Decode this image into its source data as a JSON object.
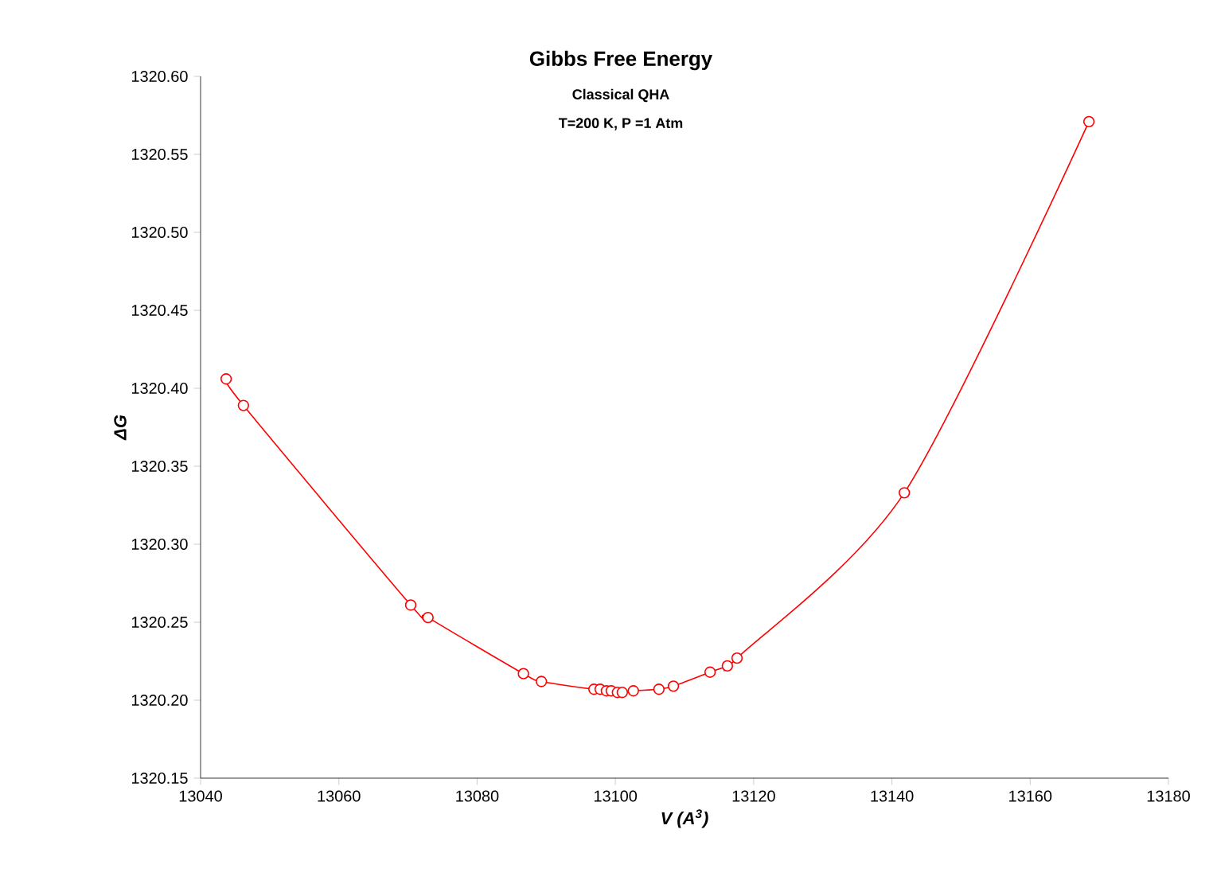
{
  "chart_data": {
    "type": "line",
    "title": "Gibbs Free Energy",
    "subtitle": "Classical QHA",
    "annotations": [
      "T=200 K, P =1 Atm"
    ],
    "xlabel": "V (A$^{3}$)",
    "ylabel": "ΔG",
    "xlim": [
      13040,
      13180
    ],
    "xticks": [
      13040,
      13060,
      13080,
      13100,
      13120,
      13140,
      13160,
      13180
    ],
    "ylim": [
      1320.15,
      1320.6
    ],
    "yticks": [
      {
        "value": 1320.15,
        "label": "1320.15"
      },
      {
        "value": 1320.2,
        "label": "1320.20"
      },
      {
        "value": 1320.25,
        "label": "1320.25"
      },
      {
        "value": 1320.3,
        "label": "1320.30"
      },
      {
        "value": 1320.35,
        "label": "1320.35"
      },
      {
        "value": 1320.4,
        "label": "1320.40"
      },
      {
        "value": 1320.45,
        "label": "1320.45"
      },
      {
        "value": 1320.5,
        "label": "1320.50"
      },
      {
        "value": 1320.55,
        "label": "1320.55"
      },
      {
        "value": 1320.6,
        "label": "1320.60"
      }
    ],
    "marker": "circle",
    "line_style": "solid",
    "series": [
      {
        "color": "#ff0000",
        "x": [
          13043.7,
          13046.2,
          13070.4,
          13072.9,
          13086.7,
          13089.3,
          13096.9,
          13097.8,
          13098.7,
          13099.4,
          13100.3,
          13101.0,
          13102.6,
          13106.3,
          13108.4,
          13113.7,
          13116.2,
          13117.6,
          13141.8,
          13168.5
        ],
        "values": [
          1320.406,
          1320.389,
          1320.261,
          1320.253,
          1320.217,
          1320.212,
          1320.207,
          1320.207,
          1320.206,
          1320.206,
          1320.205,
          1320.205,
          1320.206,
          1320.207,
          1320.209,
          1320.218,
          1320.222,
          1320.227,
          1320.333,
          1320.571
        ]
      }
    ]
  }
}
